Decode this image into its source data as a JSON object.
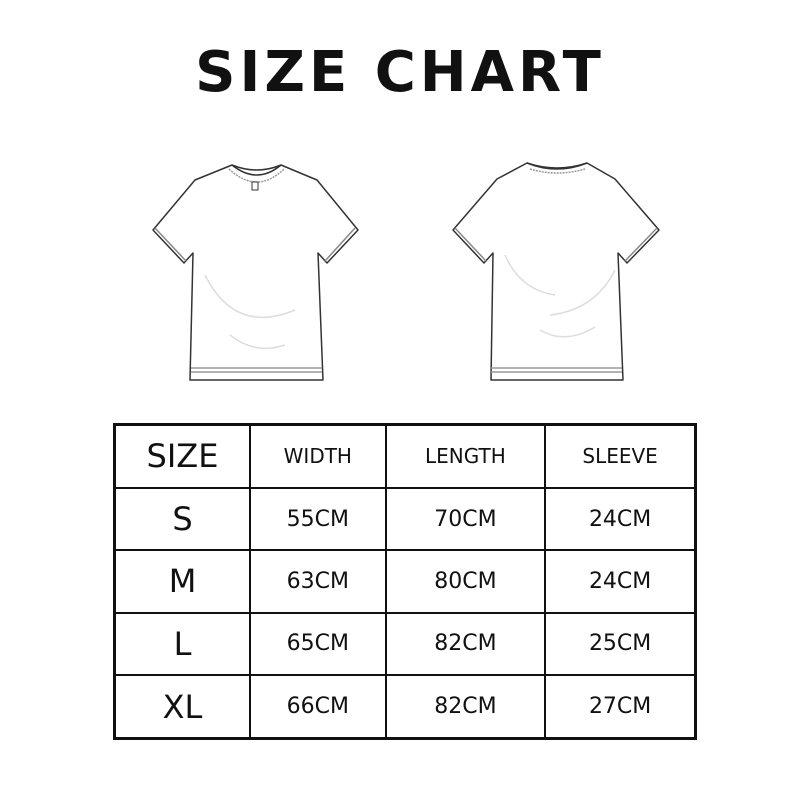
{
  "title": "SIZE CHART",
  "images": {
    "front": "t-shirt-front-outline",
    "back": "t-shirt-back-outline"
  },
  "table": {
    "headers": [
      "SIZE",
      "WIDTH",
      "LENGTH",
      "SLEEVE"
    ],
    "rows": [
      [
        "S",
        "55CM",
        "70CM",
        "24CM"
      ],
      [
        "M",
        "63CM",
        "80CM",
        "24CM"
      ],
      [
        "L",
        "65CM",
        "82CM",
        "25CM"
      ],
      [
        "XL",
        "66CM",
        "82CM",
        "27CM"
      ]
    ]
  }
}
